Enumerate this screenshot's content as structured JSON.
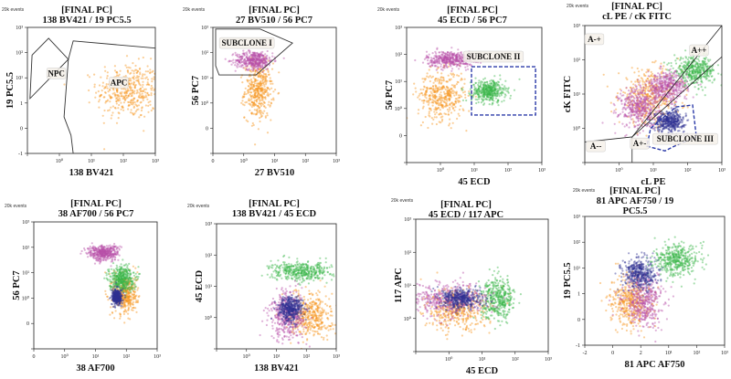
{
  "colors": {
    "orange": "#f7941d",
    "magenta": "#b84fa8",
    "green": "#39b54a",
    "blue": "#2e3192",
    "gate_dashed": "#2b3aa8",
    "gate_solid": "#333333"
  },
  "chart_data": [
    {
      "type": "scatter",
      "header": "20k events",
      "title_lines": [
        "[FINAL PC]",
        "138 BV421 / 19  PC5.5"
      ],
      "xlabel": "138 BV421",
      "ylabel": "19  PC5.5",
      "x_ticks": {
        "labels": [
          "",
          "10⁰",
          "10¹",
          "10²",
          "10³"
        ],
        "values": [
          0.1,
          1,
          10,
          100,
          1000
        ]
      },
      "y_ticks": {
        "labels": [
          "-1",
          "0",
          "1",
          "10¹",
          "10²",
          "10³"
        ],
        "values": [
          -1,
          0,
          1,
          10,
          100,
          1000
        ]
      },
      "populations": [
        {
          "color": "orange",
          "x": 150,
          "y": 3,
          "spread_decades": [
            0.5,
            0.55
          ]
        }
      ],
      "gates": [
        {
          "label": "NPC",
          "style": "solid",
          "vertices": [
            [
              0.14,
              80
            ],
            [
              0.46,
              370
            ],
            [
              1.9,
              54
            ],
            [
              0.12,
              1.5
            ]
          ],
          "label_at": [
            0.8,
            15
          ]
        },
        {
          "label": "APC",
          "style": "solid",
          "vertices": [
            [
              2.7,
              290
            ],
            [
              1000,
              150
            ],
            [
              1000,
              -1
            ],
            [
              2.7,
              -1
            ],
            [
              2.3,
              -0.28
            ],
            [
              1.4,
              0.45
            ],
            [
              1.9,
              54
            ]
          ],
          "label_at": [
            72,
            6.5
          ]
        }
      ]
    },
    {
      "type": "scatter",
      "header": "20k events",
      "title_lines": [
        "[FINAL PC]",
        "27 BV510 / 56 PC7"
      ],
      "xlabel": "27 BV510",
      "ylabel": "56 PC7",
      "x_ticks": {
        "labels": [
          "0",
          "10⁰",
          "10¹",
          "10²",
          "10³"
        ],
        "values": [
          0,
          1,
          10,
          100,
          1000
        ]
      },
      "y_ticks": {
        "labels": [
          "",
          "0",
          "10⁰",
          "10¹",
          "10²",
          "10³"
        ],
        "values": [
          -1,
          0,
          1,
          10,
          100,
          1000
        ]
      },
      "populations": [
        {
          "color": "orange",
          "x": 3,
          "y": 3,
          "spread_decades": [
            0.22,
            0.55
          ]
        },
        {
          "color": "magenta",
          "x": 2.2,
          "y": 50,
          "spread_decades": [
            0.3,
            0.18
          ]
        }
      ],
      "gates": [
        {
          "label": "SUBCLONE I",
          "style": "solid",
          "vertices": [
            [
              0.09,
              860
            ],
            [
              3.4,
              860
            ],
            [
              38,
              240
            ],
            [
              2.5,
              13
            ],
            [
              0.2,
              13
            ],
            [
              0.09,
              30
            ]
          ],
          "label_at": [
            1.26,
            240
          ]
        }
      ]
    },
    {
      "type": "scatter",
      "header": "20k events",
      "title_lines": [
        "[FINAL PC]",
        "45 ECD / 56 PC7"
      ],
      "xlabel": "45 ECD",
      "ylabel": "56 PC7",
      "x_ticks": {
        "labels": [
          "",
          "10⁰",
          "10¹",
          "10²",
          "10³"
        ],
        "values": [
          0.1,
          1,
          10,
          100,
          1000
        ]
      },
      "y_ticks": {
        "labels": [
          "",
          "0",
          "10⁰",
          "10¹",
          "10²",
          "10³"
        ],
        "values": [
          -1,
          0,
          1,
          10,
          100,
          1000
        ]
      },
      "populations": [
        {
          "color": "orange",
          "x": 1.1,
          "y": 3,
          "spread_decades": [
            0.35,
            0.45
          ]
        },
        {
          "color": "magenta",
          "x": 2,
          "y": 66,
          "spread_decades": [
            0.35,
            0.15
          ]
        },
        {
          "color": "green",
          "x": 27,
          "y": 4.4,
          "spread_decades": [
            0.25,
            0.2
          ]
        }
      ],
      "gates": [
        {
          "label": "SUBCLONE II",
          "style": "dashed",
          "vertices": [
            [
              8.3,
              35
            ],
            [
              650,
              35
            ],
            [
              650,
              0.76
            ],
            [
              8.3,
              0.76
            ]
          ],
          "label_at": [
            37,
            83
          ]
        }
      ]
    },
    {
      "type": "scatter",
      "header": "20k events",
      "title_lines": [
        "[FINAL PC]",
        "cL  PE / cK FITC"
      ],
      "xlabel": "cL  PE",
      "ylabel": "cK FITC",
      "x_ticks": {
        "labels": [
          "",
          "10⁰",
          "10¹",
          "10²",
          "10³"
        ],
        "values": [
          0.1,
          1,
          10,
          100,
          1000
        ]
      },
      "y_ticks": {
        "labels": [
          "",
          "10⁰",
          "10¹",
          "10²",
          "10³"
        ],
        "values": [
          0.1,
          1,
          10,
          100,
          1000
        ]
      },
      "populations": [
        {
          "color": "orange",
          "x": 8,
          "y": 8,
          "spread_decades": [
            0.45,
            0.4
          ]
        },
        {
          "color": "green",
          "x": 160,
          "y": 47,
          "spread_decades": [
            0.3,
            0.2
          ]
        },
        {
          "color": "magenta",
          "x": 4,
          "y": 4,
          "spread_decades": [
            0.3,
            0.3
          ]
        },
        {
          "color": "magenta",
          "x": 25,
          "y": 16,
          "spread_decades": [
            0.3,
            0.22
          ]
        },
        {
          "color": "blue",
          "x": 30,
          "y": 1.6,
          "spread_decades": [
            0.22,
            0.15
          ]
        }
      ],
      "gates": [
        {
          "label": "SUBCLONE III",
          "style": "dashed",
          "vertices": [
            [
              8.3,
              1.0
            ],
            [
              46,
              4.2
            ],
            [
              140,
              4.8
            ],
            [
              180,
              0.56
            ],
            [
              41,
              0.3
            ],
            [
              22,
              0.22
            ],
            [
              6.5,
              0.3
            ]
          ],
          "label_at": [
            85,
            0.49
          ]
        }
      ],
      "quadrant_lines": [
        [
          [
            0.1,
            0.4
          ],
          [
            2.4,
            0.56
          ]
        ],
        [
          [
            2.4,
            0.56
          ],
          [
            2.4,
            0.1
          ]
        ],
        [
          [
            2.4,
            0.56
          ],
          [
            1000,
            1000
          ]
        ],
        [
          [
            2.4,
            0.56
          ],
          [
            1000,
            123
          ]
        ]
      ],
      "quadrant_labels": [
        {
          "label": "A-+",
          "at": [
            0.19,
            400
          ]
        },
        {
          "label": "A++",
          "at": [
            215,
            190
          ]
        },
        {
          "label": "A--",
          "at": [
            0.21,
            0.3
          ]
        },
        {
          "label": "A+-",
          "at": [
            4,
            0.36
          ]
        }
      ]
    },
    {
      "type": "scatter",
      "header": "20k events",
      "title_lines": [
        "[FINAL PC]",
        "38 AF700 / 56 PC7"
      ],
      "xlabel": "38 AF700",
      "ylabel": "56 PC7",
      "x_ticks": {
        "labels": [
          "0",
          "10⁰",
          "10¹",
          "10²",
          "10³"
        ],
        "values": [
          0,
          1,
          10,
          100,
          1000
        ]
      },
      "y_ticks": {
        "labels": [
          "",
          "0",
          "10⁰",
          "10¹",
          "10²",
          "10³"
        ],
        "values": [
          -1,
          0,
          1,
          10,
          100,
          1000
        ]
      },
      "populations": [
        {
          "color": "orange",
          "x": 91,
          "y": 1.4,
          "spread_decades": [
            0.2,
            0.4
          ]
        },
        {
          "color": "green",
          "x": 70,
          "y": 5.9,
          "spread_decades": [
            0.2,
            0.25
          ]
        },
        {
          "color": "magenta",
          "x": 18,
          "y": 60,
          "spread_decades": [
            0.25,
            0.15
          ]
        },
        {
          "color": "blue",
          "x": 50,
          "y": 1.1,
          "spread_decades": [
            0.08,
            0.15
          ]
        }
      ],
      "gates": []
    },
    {
      "type": "scatter",
      "header": "20k events",
      "title_lines": [
        "[FINAL PC]",
        "138 BV421 / 45 ECD"
      ],
      "xlabel": "138 BV421",
      "ylabel": "45 ECD",
      "x_ticks": {
        "labels": [
          "",
          "10⁰",
          "10¹",
          "10²",
          "10³"
        ],
        "values": [
          0.1,
          1,
          10,
          100,
          1000
        ]
      },
      "y_ticks": {
        "labels": [
          "",
          "10⁰",
          "10¹",
          "10²",
          "10³"
        ],
        "values": [
          0.1,
          1,
          10,
          100,
          1000
        ]
      },
      "populations": [
        {
          "color": "green",
          "x": 70,
          "y": 30,
          "spread_decades": [
            0.5,
            0.15
          ]
        },
        {
          "color": "orange",
          "x": 140,
          "y": 1.2,
          "spread_decades": [
            0.35,
            0.35
          ]
        },
        {
          "color": "magenta",
          "x": 24,
          "y": 1.2,
          "spread_decades": [
            0.3,
            0.4
          ]
        },
        {
          "color": "blue",
          "x": 30,
          "y": 1.9,
          "spread_decades": [
            0.2,
            0.2
          ]
        }
      ],
      "gates": []
    },
    {
      "type": "scatter",
      "header": "20k events",
      "title_lines": [
        "[FINAL PC]",
        "45 ECD / 117  APC"
      ],
      "xlabel": "45 ECD",
      "ylabel": "117  APC",
      "x_ticks": {
        "labels": [
          "",
          "10⁰",
          "10¹",
          "10²",
          "10³"
        ],
        "values": [
          0.1,
          1,
          10,
          100,
          1000
        ]
      },
      "y_ticks": {
        "labels": [
          "",
          "10⁰",
          "10¹",
          "10²",
          "10³"
        ],
        "values": [
          0.1,
          1,
          10,
          100,
          1000
        ]
      },
      "populations": [
        {
          "color": "orange",
          "x": 1.7,
          "y": 1.7,
          "spread_decades": [
            0.5,
            0.3
          ]
        },
        {
          "color": "green",
          "x": 30,
          "y": 4,
          "spread_decades": [
            0.25,
            0.3
          ]
        },
        {
          "color": "magenta",
          "x": 0.9,
          "y": 3.7,
          "spread_decades": [
            0.6,
            0.25
          ]
        },
        {
          "color": "blue",
          "x": 2.4,
          "y": 4,
          "spread_decades": [
            0.3,
            0.15
          ]
        }
      ],
      "gates": []
    },
    {
      "type": "scatter",
      "header": "20k events",
      "title_lines": [
        "[FINAL PC]",
        "81 APC AF750 / 19",
        "PC5.5"
      ],
      "xlabel": "81 APC AF750",
      "ylabel": "19  PC5.5",
      "x_ticks": {
        "labels": [
          "-2",
          "0",
          "2",
          "10¹",
          "10²",
          "10³"
        ],
        "values": [
          -2,
          0,
          2,
          10,
          100,
          1000
        ]
      },
      "y_ticks": {
        "labels": [
          "-1",
          "0",
          "1",
          "10¹",
          "10²",
          "10³"
        ],
        "values": [
          -1,
          0,
          1,
          10,
          100,
          1000
        ]
      },
      "populations": [
        {
          "color": "orange",
          "x": 1.3,
          "y": 0.7,
          "spread_decades": [
            0.35,
            0.5
          ]
        },
        {
          "color": "green",
          "x": 19,
          "y": 20,
          "spread_decades": [
            0.4,
            0.3
          ]
        },
        {
          "color": "magenta",
          "x": 2.4,
          "y": 0.7,
          "spread_decades": [
            0.35,
            0.5
          ]
        },
        {
          "color": "blue",
          "x": 1.9,
          "y": 5.9,
          "spread_decades": [
            0.3,
            0.3
          ]
        }
      ],
      "gates": []
    }
  ]
}
